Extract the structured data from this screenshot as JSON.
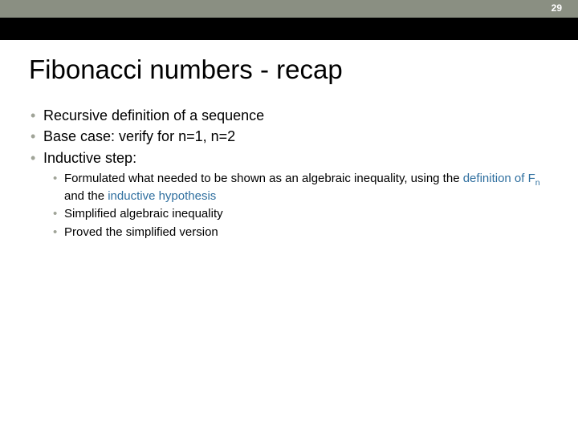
{
  "page_number": "29",
  "title": "Fibonacci numbers - recap",
  "colors": {
    "header_bg": "#8a8f82",
    "title_bar_bg": "#000000",
    "bullet_color": "#a0a498",
    "accent_color": "#2f6f9f",
    "text_color": "#000000",
    "page_number_color": "#ffffff",
    "background": "#ffffff"
  },
  "typography": {
    "title_fontsize": 33,
    "bullet_fontsize": 18,
    "subbullet_fontsize": 15,
    "page_number_fontsize": 12,
    "font_family": "Arial"
  },
  "bullets": [
    {
      "text": "Recursive definition of a sequence"
    },
    {
      "text": "Base case: verify for n=1, n=2"
    },
    {
      "text": "Inductive step:",
      "sub": [
        {
          "prefix": "Formulated what needed to be shown as an algebraic inequality, using the ",
          "accent1": "definition of F",
          "subscript": "n",
          "mid": " and the ",
          "accent2": "inductive hypothesis"
        },
        {
          "text": "Simplified algebraic inequality"
        },
        {
          "text": "Proved the simplified version"
        }
      ]
    }
  ]
}
